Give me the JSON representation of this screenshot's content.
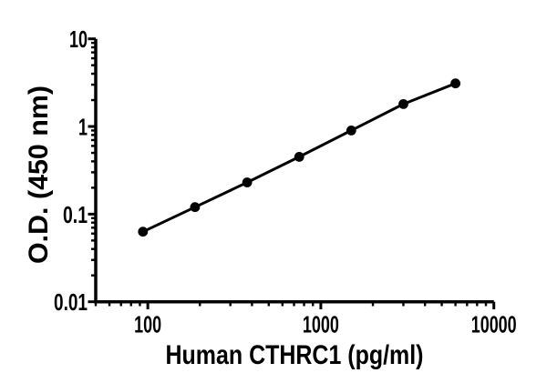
{
  "figure": {
    "background": "#ffffff",
    "ink_color": "#000000"
  },
  "chart_data": {
    "type": "line",
    "title": "",
    "xlabel": "Human CTHRC1 (pg/ml)",
    "ylabel": "O.D. (450 nm)",
    "x_scale": "log",
    "y_scale": "log",
    "xlim": [
      50,
      10000
    ],
    "ylim": [
      0.01,
      10
    ],
    "grid": false,
    "legend": "none",
    "x_ticks": [
      {
        "value": 100,
        "label": "100"
      },
      {
        "value": 1000,
        "label": "1000"
      },
      {
        "value": 10000,
        "label": "10000"
      }
    ],
    "y_ticks": [
      {
        "value": 10,
        "label": "10"
      },
      {
        "value": 1,
        "label": "1"
      },
      {
        "value": 0.1,
        "label": "0.1"
      },
      {
        "value": 0.01,
        "label": "0.01"
      }
    ],
    "series": [
      {
        "name": "Human CTHRC1 standard curve",
        "marker": "circle",
        "color": "#000000",
        "points": [
          {
            "x": 93.75,
            "y": 0.063
          },
          {
            "x": 187.5,
            "y": 0.12
          },
          {
            "x": 375,
            "y": 0.23
          },
          {
            "x": 750,
            "y": 0.45
          },
          {
            "x": 1500,
            "y": 0.9
          },
          {
            "x": 3000,
            "y": 1.8
          },
          {
            "x": 6000,
            "y": 3.1
          }
        ]
      }
    ]
  }
}
